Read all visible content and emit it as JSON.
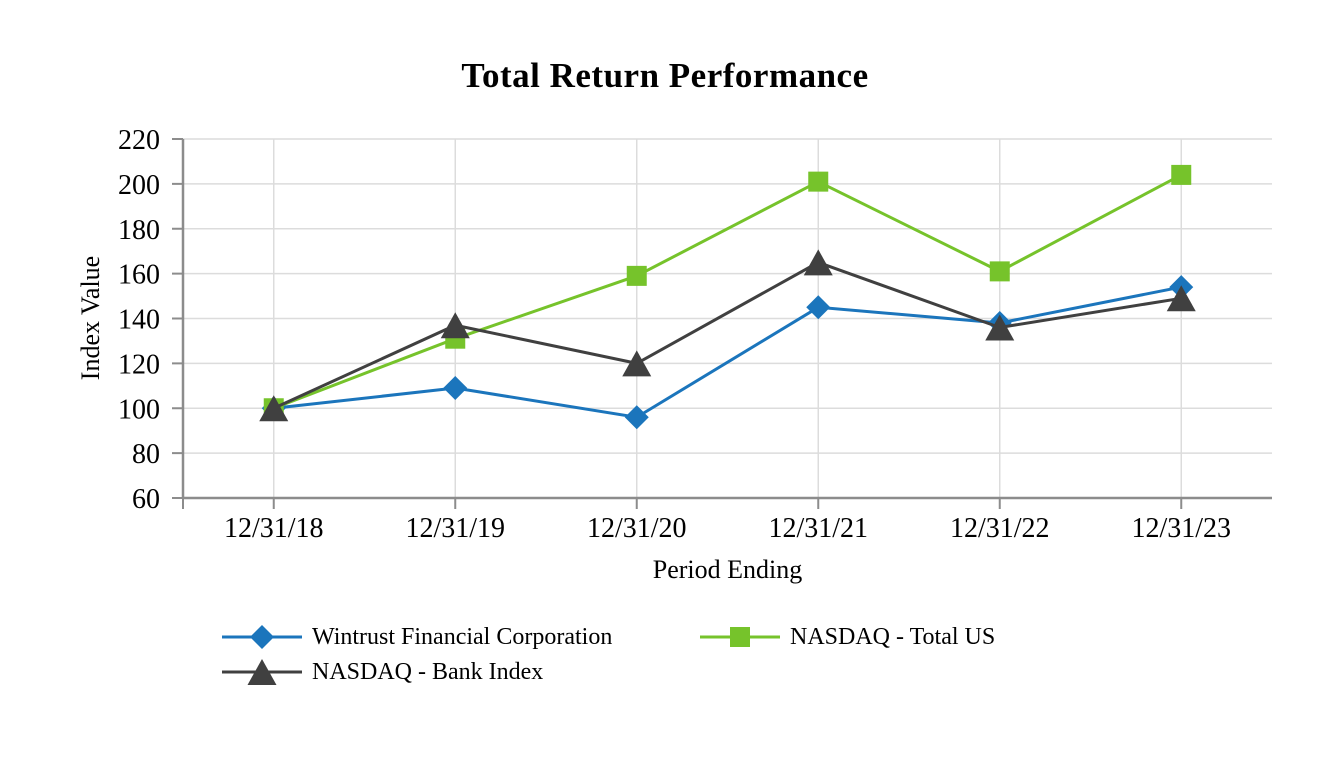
{
  "title": "Total Return Performance",
  "chart_data": {
    "type": "line",
    "title": "Total Return Performance",
    "xlabel": "Period Ending",
    "ylabel": "Index Value",
    "categories": [
      "12/31/18",
      "12/31/19",
      "12/31/20",
      "12/31/21",
      "12/31/22",
      "12/31/23"
    ],
    "ylim": [
      60,
      220
    ],
    "ytick_step": 20,
    "grid": true,
    "legend_position": "bottom",
    "series": [
      {
        "name": "Wintrust Financial Corporation",
        "color": "#1B75BC",
        "marker": "diamond",
        "values": [
          100,
          109,
          96,
          145,
          138,
          154
        ]
      },
      {
        "name": "NASDAQ - Total US",
        "color": "#76C32B",
        "marker": "square",
        "values": [
          100,
          131,
          159,
          201,
          161,
          204
        ]
      },
      {
        "name": "NASDAQ - Bank Index",
        "color": "#404040",
        "marker": "triangle",
        "values": [
          100,
          137,
          120,
          165,
          136,
          149
        ]
      }
    ],
    "axis_color": "#8C8C8C",
    "grid_color": "#DCDCDC",
    "text_color": "#000000"
  }
}
